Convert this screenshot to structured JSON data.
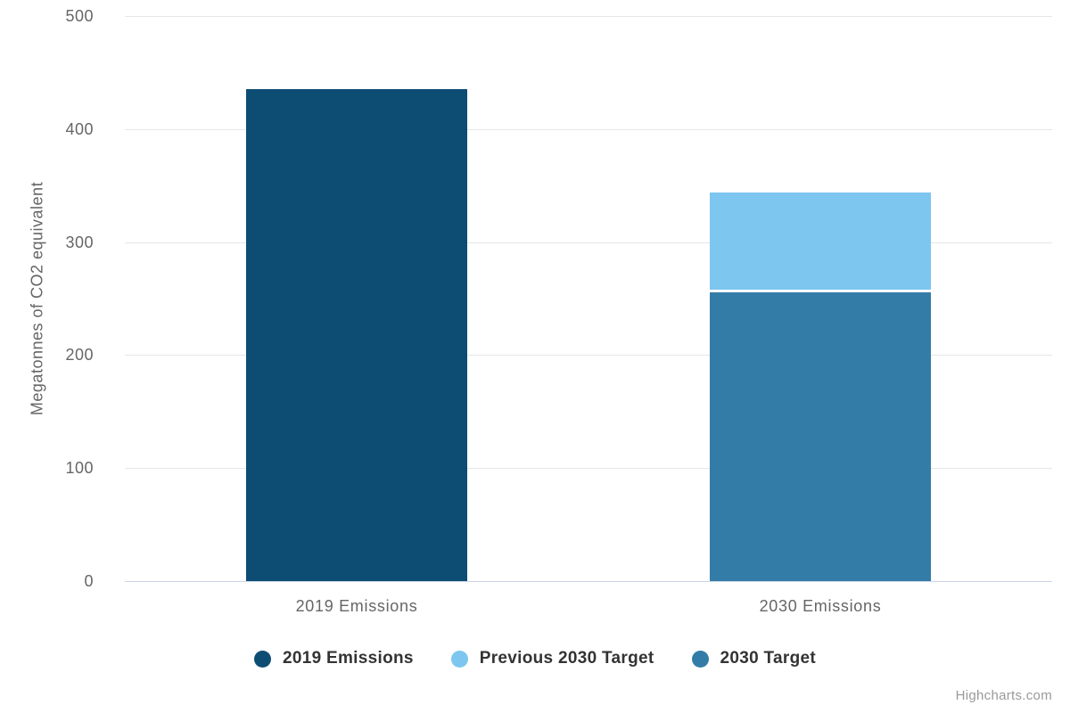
{
  "chart_data": {
    "type": "bar",
    "stacked": true,
    "categories": [
      "2019 Emissions",
      "2030 Emissions"
    ],
    "series": [
      {
        "name": "2019 Emissions",
        "color": "#0d4d74",
        "values": [
          435,
          0
        ]
      },
      {
        "name": "Previous 2030 Target",
        "color": "#7dc6f0",
        "values": [
          0,
          88
        ]
      },
      {
        "name": "2030 Target",
        "color": "#347ca8",
        "values": [
          0,
          256
        ]
      }
    ],
    "stack_totals": [
      435,
      344
    ],
    "title": "",
    "xlabel": "",
    "ylabel": "Megatonnes of CO2 equivalent",
    "ylim": [
      0,
      500
    ],
    "ytick_interval": 100,
    "yticks": [
      0,
      100,
      200,
      300,
      400,
      500
    ],
    "grid": true,
    "legend_position": "bottom"
  },
  "credits": {
    "label": "Highcharts.com"
  },
  "colors": {
    "background": "#ffffff",
    "grid": "#e6e6e6",
    "axis_line": "#ccd6eb",
    "tick_label": "#666666",
    "category_label": "#666666",
    "axis_title": "#666666",
    "legend_text": "#333333",
    "credits_text": "#999999",
    "bar_border": "#ffffff"
  }
}
